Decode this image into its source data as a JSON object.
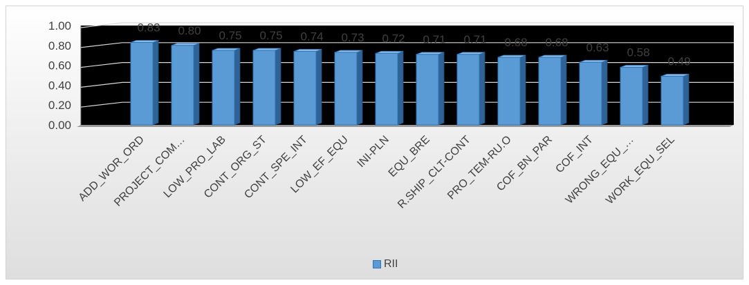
{
  "chart_data": {
    "type": "bar",
    "categories": [
      "ADD_WOR_ORD",
      "PROJECT_COM…",
      "LOW_PRO_LAB",
      "CONT_ORG_ST",
      "CONT_SPE_INT",
      "LOW_EF_EQU",
      "INI-PLN",
      "EQU_BRE",
      "R.SHIP_CLT-CONT",
      "PRO_TEM-RU.O",
      "COF_BN_PAR",
      "COF_INT",
      "WRONG_EQU_…",
      "WORK_EQU_SEL"
    ],
    "series": [
      {
        "name": "RII",
        "values": [
          0.83,
          0.8,
          0.75,
          0.75,
          0.74,
          0.73,
          0.72,
          0.71,
          0.71,
          0.68,
          0.68,
          0.63,
          0.58,
          0.49
        ],
        "labels": [
          "0.83",
          "0.80",
          "0.75",
          "0.75",
          "0.74",
          "0.73",
          "0.72",
          "0.71",
          "0.71",
          "0.68",
          "0.68",
          "0.63",
          "0.58",
          "0.49"
        ]
      }
    ],
    "y_ticks": [
      "0.00",
      "0.20",
      "0.40",
      "0.60",
      "0.80",
      "1.00"
    ],
    "ylim": [
      0,
      1
    ],
    "gridlines": true,
    "legend_position": "bottom",
    "plot_background": "#000000",
    "bar_color": "#5b9bd5",
    "bar_edge_color": "#2e75b6",
    "title": "",
    "xlabel": "",
    "ylabel": ""
  },
  "legend": {
    "label": "RII"
  }
}
